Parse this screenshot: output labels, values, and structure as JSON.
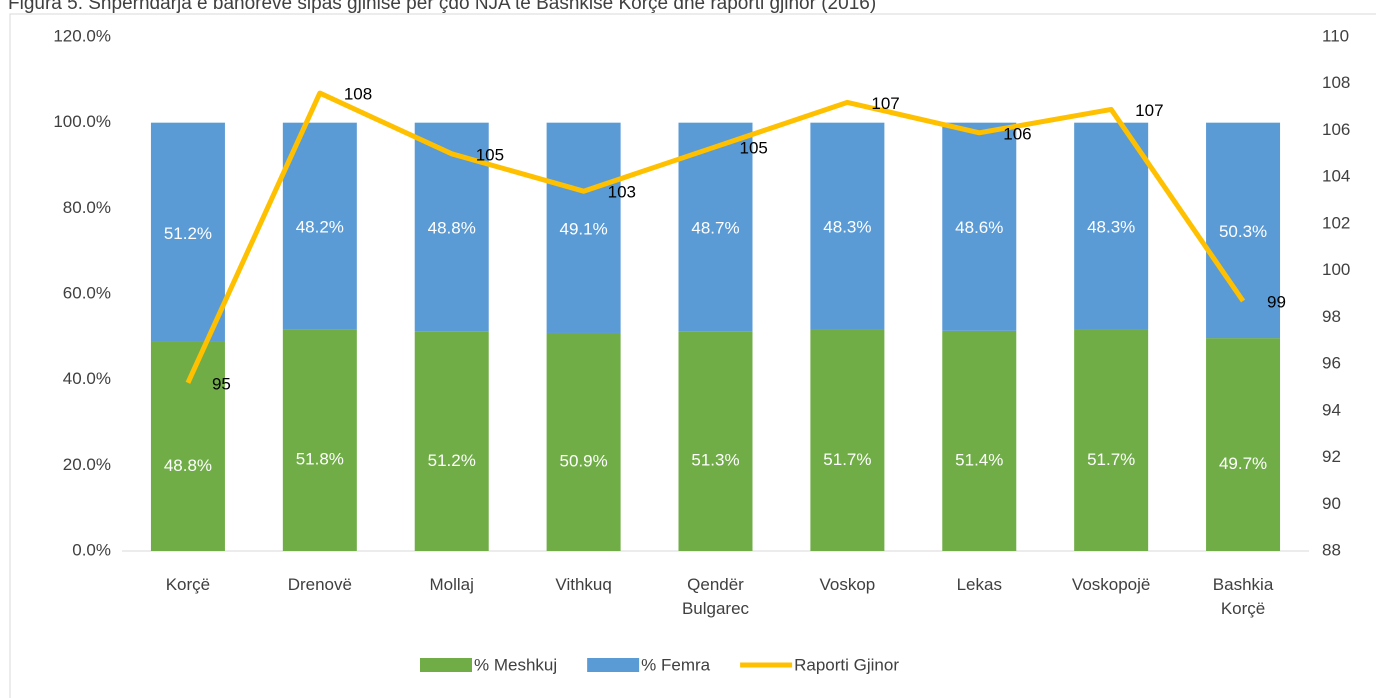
{
  "chart_data": {
    "type": "stacked_bar_line",
    "title": "Figura 5. Shpërndarja e banorëve sipas gjinisë për çdo NJA të Bashkisë Korçë dhe raporti gjinor (2016)",
    "categories": [
      "Korçë",
      "Drenovë",
      "Mollaj",
      "Vithkuq",
      "Qendër\nBulgarec",
      "Voskop",
      "Lekas",
      "Voskopojë",
      "Bashkia\nKorçë"
    ],
    "series": [
      {
        "name": "% Meshkuj",
        "color": "#70ad47",
        "values": [
          48.8,
          51.8,
          51.2,
          50.9,
          51.3,
          51.7,
          51.4,
          51.7,
          49.7
        ],
        "value_labels": [
          "48.8%",
          "51.8%",
          "51.2%",
          "50.9%",
          "51.3%",
          "51.7%",
          "51.4%",
          "51.7%",
          "49.7%"
        ]
      },
      {
        "name": "% Femra",
        "color": "#5b9bd5",
        "values": [
          51.2,
          48.2,
          48.8,
          49.1,
          48.7,
          48.3,
          48.6,
          48.3,
          50.3
        ],
        "value_labels": [
          "51.2%",
          "48.2%",
          "48.8%",
          "49.1%",
          "48.7%",
          "48.3%",
          "48.6%",
          "48.3%",
          "50.3%"
        ]
      },
      {
        "name": "Raporti Gjinor",
        "color": "#ffc000",
        "axis": "y2",
        "values": [
          95.2,
          107.6,
          105.0,
          103.4,
          105.3,
          107.2,
          105.9,
          106.9,
          98.7
        ],
        "value_labels": [
          "95",
          "108",
          "105",
          "103",
          "105",
          "107",
          "106",
          "107",
          "99"
        ]
      }
    ],
    "ylim": [
      0,
      120
    ],
    "yticks": [
      {
        "value": 0,
        "label": "0.0%"
      },
      {
        "value": 20,
        "label": "20.0%"
      },
      {
        "value": 40,
        "label": "40.0%"
      },
      {
        "value": 60,
        "label": "60.0%"
      },
      {
        "value": 80,
        "label": "80.0%"
      },
      {
        "value": 100,
        "label": "100.0%"
      },
      {
        "value": 120,
        "label": "120.0%"
      }
    ],
    "y2lim": [
      88,
      110
    ],
    "y2ticks": [
      88,
      90,
      92,
      94,
      96,
      98,
      100,
      102,
      104,
      106,
      108,
      110
    ],
    "grid": false,
    "legend": "bottom"
  }
}
